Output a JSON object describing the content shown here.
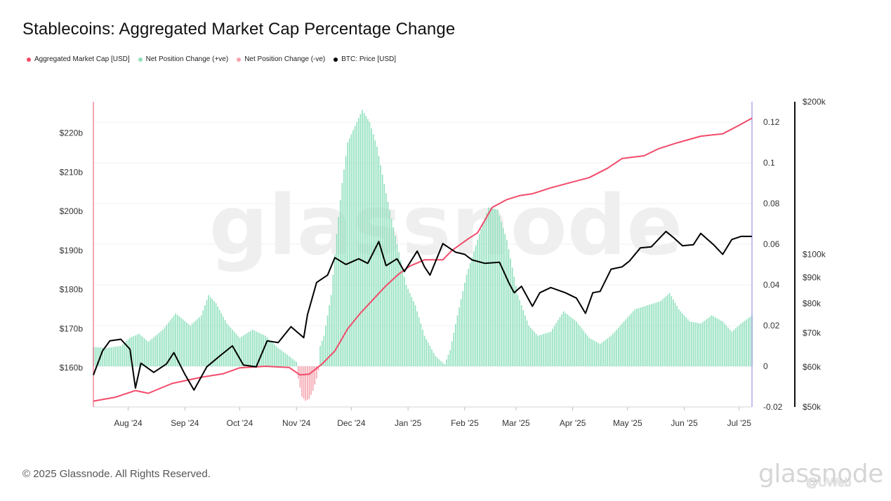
{
  "header": {
    "title": "Stablecoins: Aggregated Market Cap Percentage Change"
  },
  "legend": [
    {
      "label": "Aggregated Market Cap [USD]",
      "color": "#f24b6a"
    },
    {
      "label": "Net Position Change (+ve)",
      "color": "#8fe0bd"
    },
    {
      "label": "Net Position Change (-ve)",
      "color": "#f4a3ae"
    },
    {
      "label": "BTC: Price [USD]",
      "color": "#000000"
    }
  ],
  "footer": {
    "copyright": "© 2025 Glassnode. All Rights Reserved.",
    "logo_text": "glassnode",
    "tag": "@UWeb"
  },
  "chart_data": {
    "type": "line",
    "title": "Stablecoins: Aggregated Market Cap Percentage Change",
    "x_range": [
      "2024-07-13",
      "2025-07-08"
    ],
    "x_ticks": [
      {
        "label": "Aug '24",
        "date": "2024-08-01"
      },
      {
        "label": "Sep '24",
        "date": "2024-09-01"
      },
      {
        "label": "Oct '24",
        "date": "2024-10-01"
      },
      {
        "label": "Nov '24",
        "date": "2024-11-01"
      },
      {
        "label": "Dec '24",
        "date": "2024-12-01"
      },
      {
        "label": "Jan '25",
        "date": "2025-01-01"
      },
      {
        "label": "Feb '25",
        "date": "2025-02-01"
      },
      {
        "label": "Mar '25",
        "date": "2025-03-01"
      },
      {
        "label": "Apr '25",
        "date": "2025-04-01"
      },
      {
        "label": "May '25",
        "date": "2025-05-01"
      },
      {
        "label": "Jun '25",
        "date": "2025-06-01"
      },
      {
        "label": "Jul '25",
        "date": "2025-07-01"
      }
    ],
    "y_left": {
      "range": [
        150,
        228
      ],
      "ticks": [
        {
          "label": "$160b",
          "value": 160
        },
        {
          "label": "$170b",
          "value": 170
        },
        {
          "label": "$180b",
          "value": 180
        },
        {
          "label": "$190b",
          "value": 190
        },
        {
          "label": "$200b",
          "value": 200
        },
        {
          "label": "$210b",
          "value": 210
        },
        {
          "label": "$220b",
          "value": 220
        }
      ]
    },
    "y_mid": {
      "range": [
        -0.02,
        0.13
      ],
      "ticks": [
        {
          "label": "-0.02",
          "value": -0.02
        },
        {
          "label": "0",
          "value": 0
        },
        {
          "label": "0.02",
          "value": 0.02
        },
        {
          "label": "0.04",
          "value": 0.04
        },
        {
          "label": "0.06",
          "value": 0.06
        },
        {
          "label": "0.08",
          "value": 0.08
        },
        {
          "label": "0.1",
          "value": 0.1
        },
        {
          "label": "0.12",
          "value": 0.12
        }
      ]
    },
    "y_right": {
      "scale": "log",
      "range": [
        50000,
        200000
      ],
      "ticks": [
        {
          "label": "$50k",
          "value": 50000
        },
        {
          "label": "$60k",
          "value": 60000
        },
        {
          "label": "$70k",
          "value": 70000
        },
        {
          "label": "$80k",
          "value": 80000
        },
        {
          "label": "$90k",
          "value": 90000
        },
        {
          "label": "$100k",
          "value": 100000
        },
        {
          "label": "$200k",
          "value": 200000
        }
      ]
    },
    "series": [
      {
        "name": "Aggregated Market Cap [USD]",
        "axis": "left",
        "color": "#f24b6a",
        "points": [
          [
            "2024-07-13",
            151.5
          ],
          [
            "2024-07-25",
            152.5
          ],
          [
            "2024-08-05",
            154.2
          ],
          [
            "2024-08-12",
            153.5
          ],
          [
            "2024-08-25",
            156.0
          ],
          [
            "2024-09-10",
            157.6
          ],
          [
            "2024-09-22",
            158.5
          ],
          [
            "2024-10-01",
            160.0
          ],
          [
            "2024-10-15",
            160.4
          ],
          [
            "2024-10-28",
            160.1
          ],
          [
            "2024-11-03",
            158.2
          ],
          [
            "2024-11-08",
            158.4
          ],
          [
            "2024-11-15",
            161.0
          ],
          [
            "2024-11-22",
            164.3
          ],
          [
            "2024-11-29",
            170.0
          ],
          [
            "2024-12-06",
            174.0
          ],
          [
            "2024-12-13",
            177.5
          ],
          [
            "2024-12-20",
            181.0
          ],
          [
            "2024-12-27",
            184.0
          ],
          [
            "2025-01-02",
            186.0
          ],
          [
            "2025-01-10",
            187.6
          ],
          [
            "2025-01-20",
            187.6
          ],
          [
            "2025-01-25",
            190.0
          ],
          [
            "2025-02-03",
            193.0
          ],
          [
            "2025-02-08",
            194.5
          ],
          [
            "2025-02-16",
            201.0
          ],
          [
            "2025-02-24",
            203.0
          ],
          [
            "2025-03-03",
            204.0
          ],
          [
            "2025-03-10",
            204.5
          ],
          [
            "2025-03-20",
            206.0
          ],
          [
            "2025-04-01",
            207.5
          ],
          [
            "2025-04-10",
            208.6
          ],
          [
            "2025-04-20",
            211.0
          ],
          [
            "2025-04-28",
            213.5
          ],
          [
            "2025-05-10",
            214.2
          ],
          [
            "2025-05-18",
            216.0
          ],
          [
            "2025-05-28",
            217.5
          ],
          [
            "2025-06-10",
            219.2
          ],
          [
            "2025-06-22",
            219.8
          ],
          [
            "2025-07-01",
            222.0
          ],
          [
            "2025-07-08",
            223.8
          ]
        ]
      },
      {
        "name": "BTC: Price [USD]",
        "axis": "right",
        "color": "#000000",
        "points": [
          [
            "2024-07-13",
            57800
          ],
          [
            "2024-07-18",
            64500
          ],
          [
            "2024-07-22",
            67500
          ],
          [
            "2024-07-28",
            68000
          ],
          [
            "2024-08-02",
            65000
          ],
          [
            "2024-08-05",
            54500
          ],
          [
            "2024-08-08",
            61000
          ],
          [
            "2024-08-15",
            58500
          ],
          [
            "2024-08-22",
            60800
          ],
          [
            "2024-08-26",
            64000
          ],
          [
            "2024-09-01",
            58000
          ],
          [
            "2024-09-06",
            54000
          ],
          [
            "2024-09-13",
            60000
          ],
          [
            "2024-09-20",
            63000
          ],
          [
            "2024-09-27",
            66000
          ],
          [
            "2024-10-03",
            60500
          ],
          [
            "2024-10-10",
            60000
          ],
          [
            "2024-10-16",
            67500
          ],
          [
            "2024-10-22",
            67000
          ],
          [
            "2024-10-29",
            72000
          ],
          [
            "2024-11-05",
            68500
          ],
          [
            "2024-11-07",
            76000
          ],
          [
            "2024-11-12",
            88000
          ],
          [
            "2024-11-18",
            91000
          ],
          [
            "2024-11-22",
            98500
          ],
          [
            "2024-11-28",
            95500
          ],
          [
            "2024-12-05",
            98000
          ],
          [
            "2024-12-10",
            96000
          ],
          [
            "2024-12-16",
            106000
          ],
          [
            "2024-12-20",
            95000
          ],
          [
            "2024-12-26",
            98000
          ],
          [
            "2024-12-30",
            92500
          ],
          [
            "2025-01-06",
            101500
          ],
          [
            "2025-01-10",
            94500
          ],
          [
            "2025-01-13",
            91000
          ],
          [
            "2025-01-20",
            105000
          ],
          [
            "2025-01-27",
            101000
          ],
          [
            "2025-02-01",
            100000
          ],
          [
            "2025-02-05",
            97500
          ],
          [
            "2025-02-12",
            96000
          ],
          [
            "2025-02-20",
            96500
          ],
          [
            "2025-02-25",
            88000
          ],
          [
            "2025-02-28",
            84000
          ],
          [
            "2025-03-04",
            86500
          ],
          [
            "2025-03-10",
            79000
          ],
          [
            "2025-03-14",
            84000
          ],
          [
            "2025-03-20",
            86000
          ],
          [
            "2025-03-28",
            84000
          ],
          [
            "2025-04-03",
            82000
          ],
          [
            "2025-04-08",
            76500
          ],
          [
            "2025-04-12",
            84000
          ],
          [
            "2025-04-16",
            84500
          ],
          [
            "2025-04-22",
            93500
          ],
          [
            "2025-04-28",
            94500
          ],
          [
            "2025-05-02",
            97000
          ],
          [
            "2025-05-08",
            103000
          ],
          [
            "2025-05-14",
            103500
          ],
          [
            "2025-05-22",
            111000
          ],
          [
            "2025-05-26",
            108000
          ],
          [
            "2025-05-31",
            104000
          ],
          [
            "2025-06-06",
            104500
          ],
          [
            "2025-06-10",
            110000
          ],
          [
            "2025-06-17",
            104500
          ],
          [
            "2025-06-22",
            100000
          ],
          [
            "2025-06-27",
            107000
          ],
          [
            "2025-07-02",
            108500
          ],
          [
            "2025-07-08",
            108500
          ]
        ]
      },
      {
        "name": "Net Position Change (+ve)",
        "type": "bar",
        "axis": "mid",
        "color": "#8fe0bd",
        "points": [
          [
            "2024-07-13",
            0.0095
          ],
          [
            "2024-07-20",
            0.009
          ],
          [
            "2024-07-28",
            0.01
          ],
          [
            "2024-08-02",
            0.014
          ],
          [
            "2024-08-07",
            0.016
          ],
          [
            "2024-08-12",
            0.012
          ],
          [
            "2024-08-20",
            0.018
          ],
          [
            "2024-08-27",
            0.026
          ],
          [
            "2024-09-04",
            0.02
          ],
          [
            "2024-09-10",
            0.025
          ],
          [
            "2024-09-14",
            0.035
          ],
          [
            "2024-09-18",
            0.031
          ],
          [
            "2024-09-24",
            0.021
          ],
          [
            "2024-10-01",
            0.014
          ],
          [
            "2024-10-08",
            0.018
          ],
          [
            "2024-10-15",
            0.015
          ],
          [
            "2024-10-22",
            0.009
          ],
          [
            "2024-10-28",
            0.005
          ],
          [
            "2024-11-04",
            0
          ],
          [
            "2024-11-09",
            0
          ],
          [
            "2024-11-12",
            0.005
          ],
          [
            "2024-11-16",
            0.015
          ],
          [
            "2024-11-20",
            0.035
          ],
          [
            "2024-11-23",
            0.065
          ],
          [
            "2024-11-26",
            0.09
          ],
          [
            "2024-11-29",
            0.11
          ],
          [
            "2024-12-03",
            0.118
          ],
          [
            "2024-12-07",
            0.126
          ],
          [
            "2024-12-11",
            0.12
          ],
          [
            "2024-12-15",
            0.108
          ],
          [
            "2024-12-20",
            0.085
          ],
          [
            "2024-12-26",
            0.06
          ],
          [
            "2024-12-31",
            0.04
          ],
          [
            "2025-01-05",
            0.03
          ],
          [
            "2025-01-10",
            0.015
          ],
          [
            "2025-01-16",
            0.005
          ],
          [
            "2025-01-21",
            0.001
          ],
          [
            "2025-01-24",
            0.008
          ],
          [
            "2025-01-28",
            0.025
          ],
          [
            "2025-02-02",
            0.045
          ],
          [
            "2025-02-09",
            0.065
          ],
          [
            "2025-02-14",
            0.078
          ],
          [
            "2025-02-19",
            0.077
          ],
          [
            "2025-02-24",
            0.062
          ],
          [
            "2025-03-02",
            0.035
          ],
          [
            "2025-03-08",
            0.02
          ],
          [
            "2025-03-13",
            0.015
          ],
          [
            "2025-03-20",
            0.017
          ],
          [
            "2025-03-27",
            0.027
          ],
          [
            "2025-04-03",
            0.022
          ],
          [
            "2025-04-10",
            0.014
          ],
          [
            "2025-04-16",
            0.011
          ],
          [
            "2025-04-22",
            0.015
          ],
          [
            "2025-04-28",
            0.021
          ],
          [
            "2025-05-05",
            0.028
          ],
          [
            "2025-05-12",
            0.03
          ],
          [
            "2025-05-19",
            0.032
          ],
          [
            "2025-05-24",
            0.036
          ],
          [
            "2025-05-29",
            0.028
          ],
          [
            "2025-06-04",
            0.022
          ],
          [
            "2025-06-10",
            0.021
          ],
          [
            "2025-06-16",
            0.025
          ],
          [
            "2025-06-22",
            0.022
          ],
          [
            "2025-06-27",
            0.017
          ],
          [
            "2025-07-02",
            0.021
          ],
          [
            "2025-07-08",
            0.025
          ]
        ]
      },
      {
        "name": "Net Position Change (-ve)",
        "type": "bar",
        "axis": "mid",
        "color": "#f4a3ae",
        "points": [
          [
            "2024-11-02",
            -0.006
          ],
          [
            "2024-11-04",
            -0.015
          ],
          [
            "2024-11-06",
            -0.017
          ],
          [
            "2024-11-08",
            -0.016
          ],
          [
            "2024-11-10",
            -0.012
          ],
          [
            "2024-11-12",
            -0.006
          ],
          [
            "2024-11-13",
            -0.002
          ]
        ]
      }
    ]
  }
}
